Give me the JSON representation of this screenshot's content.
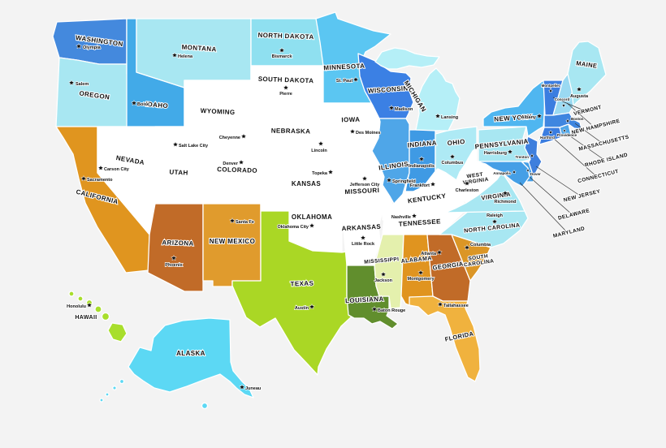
{
  "background_color": "#f3f3f3",
  "state_border_color": "#ffffff",
  "label_color": "#111111",
  "leader_line_color": "#333333",
  "capital_marker": "star-icon",
  "states": {
    "WA": {
      "name": "WASHINGTON",
      "capital": "Olympia",
      "color": "#4489dd"
    },
    "OR": {
      "name": "OREGON",
      "capital": "Salem",
      "color": "#a8e7f2"
    },
    "CA": {
      "name": "CALIFORNIA",
      "capital": "Sacramento",
      "color": "#e0951f"
    },
    "NV": {
      "name": "NEVADA",
      "capital": "Carson City",
      "color": "#ffffff"
    },
    "ID": {
      "name": "IDAHO",
      "capital": "Boise",
      "color": "#42aae8"
    },
    "MT": {
      "name": "MONTANA",
      "capital": "Helena",
      "color": "#a8e7f2"
    },
    "WY": {
      "name": "WYOMING",
      "capital": "Cheyenne",
      "color": "#ffffff"
    },
    "UT": {
      "name": "UTAH",
      "capital": "Salt Lake City",
      "color": "#ffffff"
    },
    "CO": {
      "name": "COLORADO",
      "capital": "Denver",
      "color": "#ffffff"
    },
    "AZ": {
      "name": "ARIZONA",
      "capital": "Phoenix",
      "color": "#c16b28"
    },
    "NM": {
      "name": "NEW MEXICO",
      "capital": "Santa Fe",
      "color": "#e09b2d"
    },
    "ND": {
      "name": "NORTH DAKOTA",
      "capital": "Bismarck",
      "color": "#8fe0f0"
    },
    "SD": {
      "name": "SOUTH DAKOTA",
      "capital": "Pierre",
      "color": "#ffffff"
    },
    "NE": {
      "name": "NEBRASKA",
      "capital": "Lincoln",
      "color": "#ffffff"
    },
    "KS": {
      "name": "KANSAS",
      "capital": "Topeka",
      "color": "#ffffff"
    },
    "OK": {
      "name": "OKLAHOMA",
      "capital": "Oklahoma City",
      "color": "#ffffff"
    },
    "TX": {
      "name": "TEXAS",
      "capital": "Austin",
      "color": "#aad725"
    },
    "MN": {
      "name": "MINNESOTA",
      "capital": "St. Paul",
      "color": "#5bc6f2"
    },
    "IA": {
      "name": "IOWA",
      "capital": "Des Moines",
      "color": "#ffffff"
    },
    "MO": {
      "name": "MISSOURI",
      "capital": "Jefferson City",
      "color": "#ffffff"
    },
    "AR": {
      "name": "ARKANSAS",
      "capital": "Little Rock",
      "color": "#ffffff"
    },
    "LA": {
      "name": "LOUISIANA",
      "capital": "Baton Rouge",
      "color": "#618e2d"
    },
    "WI": {
      "name": "WISCONSIN",
      "capital": "Madison",
      "color": "#3b80e4"
    },
    "IL": {
      "name": "ILLINOIS",
      "capital": "Springfield",
      "color": "#4fa6e8"
    },
    "IN": {
      "name": "INDIANA",
      "capital": "Indianapolis",
      "color": "#3f9ae4"
    },
    "OH": {
      "name": "OHIO",
      "capital": "Columbus",
      "color": "#aeeaf5"
    },
    "MI": {
      "name": "MICHIGAN",
      "capital": "Lansing",
      "color": "#b5eff7"
    },
    "KY": {
      "name": "KENTUCKY",
      "capital": "Frankfort",
      "color": "#ffffff"
    },
    "TN": {
      "name": "TENNESSEE",
      "capital": "Nashville",
      "color": "#ffffff"
    },
    "MS": {
      "name": "MISSISSIPPI",
      "capital": "Jackson",
      "color": "#e4f0ad"
    },
    "AL": {
      "name": "ALABAMA",
      "capital": "Montgomery",
      "color": "#e0941f"
    },
    "GA": {
      "name": "GEORGIA",
      "capital": "Atlanta",
      "color": "#c16b28"
    },
    "SC": {
      "name": "SOUTH CAROLINA",
      "capital": "Columbia",
      "color": "#db9626"
    },
    "NC": {
      "name": "NORTH CAROLINA",
      "capital": "Raleigh",
      "color": "#a8e7f2"
    },
    "VA": {
      "name": "VIRGINIA",
      "capital": "Richmond",
      "color": "#a8e7f2"
    },
    "WV": {
      "name": "WEST VIRGINIA",
      "capital": "Charleston",
      "color": "#ffffff"
    },
    "FL": {
      "name": "FLORIDA",
      "capital": "Tallahassee",
      "color": "#f0b23e"
    },
    "PA": {
      "name": "PENNSYLVANIA",
      "capital": "Harrisburg",
      "color": "#a8e7f2"
    },
    "NY": {
      "name": "NEW YORK",
      "capital": "Albany",
      "color": "#4fb6f0"
    },
    "ME": {
      "name": "MAINE",
      "capital": "Augusta",
      "color": "#a8e7f2"
    },
    "VT": {
      "name": "VERMONT",
      "capital": "Montpelier",
      "color": "#3b7de0"
    },
    "NH": {
      "name": "NEW HAMPSHIRE",
      "capital": "Concord",
      "color": "#9ad9f2"
    },
    "MA": {
      "name": "MASSACHUSETTS",
      "capital": "Boston",
      "color": "#3f86e0"
    },
    "RI": {
      "name": "RHODE ISLAND",
      "capital": "Providence",
      "color": "#4fa6e8"
    },
    "CT": {
      "name": "CONNECTICUT",
      "capital": "Hartford",
      "color": "#3b7de0"
    },
    "NJ": {
      "name": "NEW JERSEY",
      "capital": "Trenton",
      "color": "#3f7fdd"
    },
    "DE": {
      "name": "DELAWARE",
      "capital": "Dover",
      "color": "#459fe6"
    },
    "MD": {
      "name": "MARYLAND",
      "capital": "Annapolis",
      "color": "#459fe6"
    },
    "AK": {
      "name": "ALASKA",
      "capital": "Juneau",
      "color": "#5cd8f4"
    },
    "HI": {
      "name": "HAWAII",
      "capital": "Honolulu",
      "color": "#a8de2c"
    }
  }
}
